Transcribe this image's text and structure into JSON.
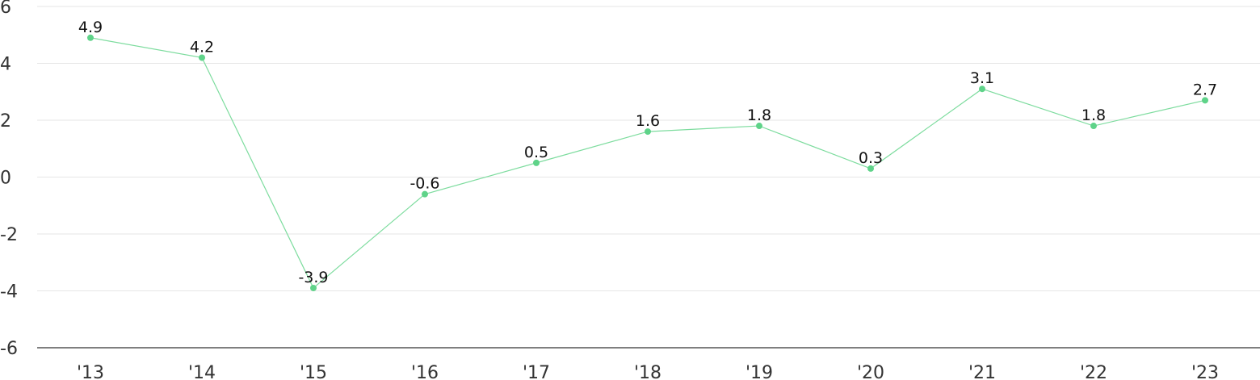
{
  "chart_data": {
    "type": "line",
    "categories": [
      "'13",
      "'14",
      "'15",
      "'16",
      "'17",
      "'18",
      "'19",
      "'20",
      "'21",
      "'22",
      "'23"
    ],
    "series": [
      {
        "values": [
          4.9,
          4.2,
          -3.9,
          -0.6,
          0.5,
          1.6,
          1.8,
          0.3,
          3.1,
          1.8,
          2.7
        ]
      }
    ],
    "data_labels": [
      "4.9",
      "4.2",
      "-3.9",
      "-0.6",
      "0.5",
      "1.6",
      "1.8",
      "0.3",
      "3.1",
      "1.8",
      "2.7"
    ],
    "ylim": [
      -6,
      6
    ],
    "yticks": [
      6,
      4,
      2,
      0,
      -2,
      -4,
      -6
    ],
    "ytick_labels": [
      "6",
      "4",
      "2",
      "0",
      "-2",
      "-4",
      "-6"
    ],
    "grid": true,
    "line_color": "#7ddc9e",
    "marker_color": "#5fd389"
  }
}
